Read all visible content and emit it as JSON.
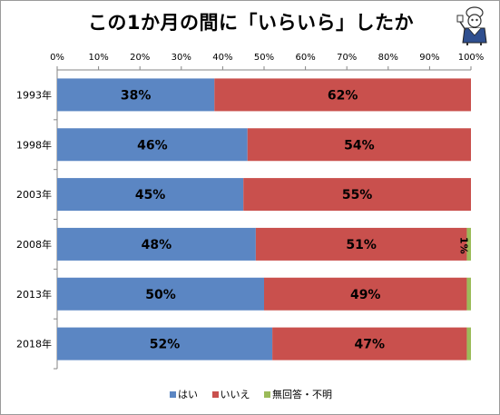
{
  "chart_data": {
    "type": "bar",
    "orientation": "horizontal",
    "stacked": true,
    "title": "この1か月の間に「いらいら」したか",
    "categories": [
      "1993年",
      "1998年",
      "2003年",
      "2008年",
      "2013年",
      "2018年"
    ],
    "series": [
      {
        "name": "はい",
        "values": [
          38,
          46,
          45,
          48,
          50,
          52
        ],
        "labels": [
          "38%",
          "46%",
          "45%",
          "48%",
          "50%",
          "52%"
        ],
        "color": "#5b86c3"
      },
      {
        "name": "いいえ",
        "values": [
          62,
          54,
          55,
          51,
          49,
          47
        ],
        "labels": [
          "62%",
          "54%",
          "55%",
          "51%",
          "49%",
          "47%"
        ],
        "color": "#c9504d"
      },
      {
        "name": "無回答・不明",
        "values": [
          0,
          0,
          0,
          1,
          1,
          1
        ],
        "labels": [
          "",
          "",
          "",
          "1%",
          "",
          ""
        ],
        "color": "#9bbb59"
      }
    ],
    "x_ticks": [
      "0%",
      "10%",
      "20%",
      "30%",
      "40%",
      "50%",
      "60%",
      "70%",
      "80%",
      "90%",
      "100%"
    ],
    "xlim": [
      0,
      100
    ],
    "legend_position": "bottom",
    "grid": false
  }
}
